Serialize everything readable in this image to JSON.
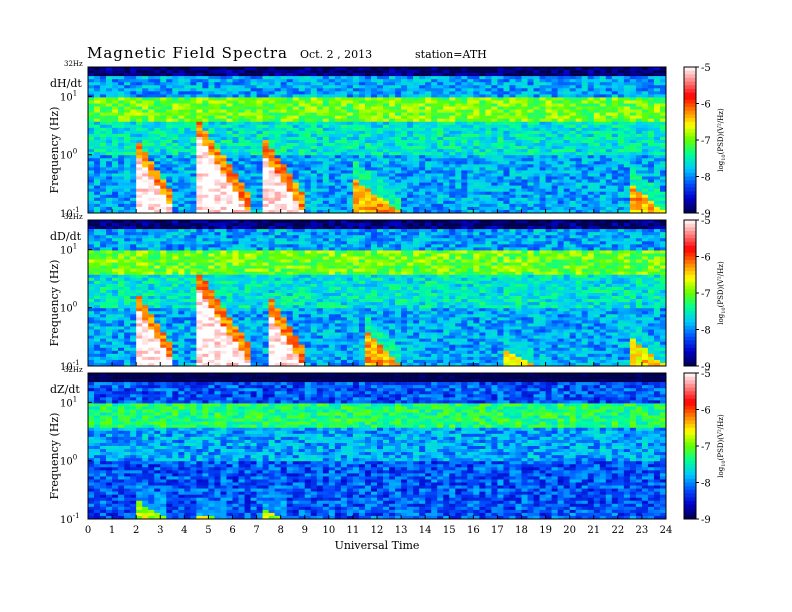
{
  "title": "Magnetic  Field  Spectra",
  "date": "Oct. 2  , 2013",
  "station": "station=ATH",
  "chart_data": {
    "type": "heatmap",
    "xlabel": "Universal Time",
    "x_ticks": [
      "0",
      "1",
      "2",
      "3",
      "4",
      "5",
      "6",
      "7",
      "8",
      "9",
      "10",
      "11",
      "12",
      "13",
      "14",
      "15",
      "16",
      "17",
      "18",
      "19",
      "20",
      "21",
      "22",
      "23",
      "24"
    ],
    "xlim": [
      0,
      24
    ],
    "ylabel": "Frequency  (Hz)",
    "yscale": "log",
    "y_ticks": [
      {
        "base": "10",
        "exp": "-1"
      },
      {
        "base": "10",
        "exp": "0"
      },
      {
        "base": "10",
        "exp": "1"
      }
    ],
    "y_top_label": "32Hz",
    "colorbar": {
      "label": "log10(PSD)(V^2/Hz)",
      "label_main": "log",
      "label_sub": "10",
      "label_rest": "(PSD)(V²/Hz)",
      "ticks": [
        "-5",
        "-6",
        "-7",
        "-8",
        "-9"
      ],
      "range": [
        -9,
        -5
      ],
      "colors": [
        "#000050",
        "#0000c8",
        "#0050ff",
        "#00c8ff",
        "#00ff96",
        "#64ff00",
        "#ffff00",
        "#ff8000",
        "#ff0000",
        "#ff8080",
        "#ffffff"
      ]
    },
    "panels": [
      {
        "label": "dH/dt",
        "background_level": -7.9,
        "bursts": [
          {
            "t": [
              2.0,
              3.6
            ],
            "peak_freq_hz": 1.0,
            "level": -5.0
          },
          {
            "t": [
              4.6,
              6.7
            ],
            "peak_freq_hz": 2.0,
            "level": -5.0
          },
          {
            "t": [
              7.3,
              9.0
            ],
            "peak_freq_hz": 1.0,
            "level": -5.0
          },
          {
            "t": [
              11.0,
              13.0
            ],
            "peak_freq_hz": 0.4,
            "level": -6.3
          },
          {
            "t": [
              22.6,
              24.0
            ],
            "peak_freq_hz": 0.3,
            "level": -6.3
          }
        ]
      },
      {
        "label": "dD/dt",
        "background_level": -7.9,
        "bursts": [
          {
            "t": [
              2.0,
              3.6
            ],
            "peak_freq_hz": 1.0,
            "level": -5.0
          },
          {
            "t": [
              4.6,
              6.8
            ],
            "peak_freq_hz": 2.0,
            "level": -5.0
          },
          {
            "t": [
              7.4,
              9.0
            ],
            "peak_freq_hz": 1.0,
            "level": -5.0
          },
          {
            "t": [
              11.5,
              13.0
            ],
            "peak_freq_hz": 0.4,
            "level": -6.3
          },
          {
            "t": [
              17.3,
              18.5
            ],
            "peak_freq_hz": 0.2,
            "level": -6.5
          },
          {
            "t": [
              22.6,
              24.0
            ],
            "peak_freq_hz": 0.3,
            "level": -6.5
          }
        ]
      },
      {
        "label": "dZ/dt",
        "background_level": -8.2,
        "bursts": [
          {
            "t": [
              2.1,
              3.3
            ],
            "peak_freq_hz": 0.2,
            "level": -6.8
          },
          {
            "t": [
              4.4,
              5.8
            ],
            "peak_freq_hz": 0.12,
            "level": -6.8
          },
          {
            "t": [
              7.3,
              8.2
            ],
            "peak_freq_hz": 0.15,
            "level": -6.8
          }
        ]
      }
    ]
  }
}
